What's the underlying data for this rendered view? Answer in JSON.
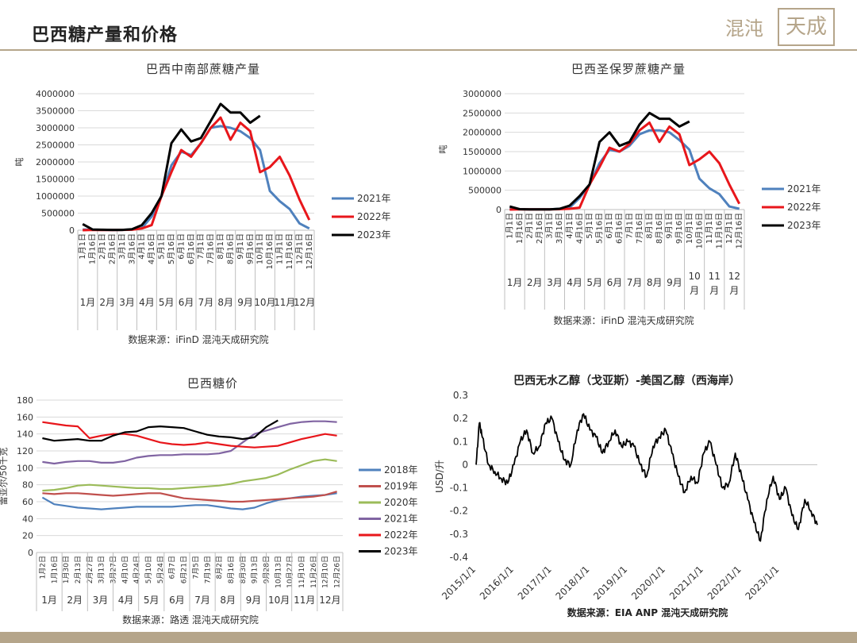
{
  "page": {
    "title": "巴西糖产量和价格",
    "logo_text": "混沌",
    "logo_box_text": "天成"
  },
  "chart_data": [
    {
      "id": "c1",
      "type": "line",
      "title": "巴西中南部蔗糖产量",
      "ylabel": "吨",
      "ylim": [
        0,
        4000000
      ],
      "yticks": [
        "0",
        "500000",
        "1000000",
        "1500000",
        "2000000",
        "2500000",
        "3000000",
        "3500000",
        "4000000"
      ],
      "x": [
        "1月1日",
        "1月16日",
        "2月1日",
        "2月16日",
        "3月1日",
        "3月16日",
        "4月1日",
        "4月16日",
        "5月1日",
        "5月16日",
        "6月1日",
        "6月16日",
        "7月1日",
        "7月16日",
        "8月1日",
        "8月16日",
        "9月1日",
        "9月16日",
        "10月1日",
        "10月16日",
        "11月1日",
        "11月16日",
        "12月1日",
        "12月16日"
      ],
      "months": [
        "1月",
        "2月",
        "3月",
        "4月",
        "5月",
        "6月",
        "7月",
        "8月",
        "9月",
        "10月",
        "11月",
        "12月"
      ],
      "series": [
        {
          "name": "2021年",
          "color": "#4f81bd",
          "values": [
            20000,
            15000,
            10000,
            8000,
            10000,
            20000,
            60000,
            400000,
            1000000,
            1900000,
            2300000,
            2200000,
            2550000,
            3000000,
            3050000,
            3000000,
            2900000,
            2700000,
            2350000,
            1150000,
            850000,
            620000,
            200000,
            50000
          ]
        },
        {
          "name": "2022年",
          "color": "#e8161b",
          "values": [
            0,
            10000,
            5000,
            5000,
            10000,
            15000,
            50000,
            150000,
            1000000,
            1700000,
            2350000,
            2150000,
            2550000,
            3000000,
            3300000,
            2650000,
            3150000,
            2900000,
            1700000,
            1850000,
            2150000,
            1600000,
            900000,
            300000
          ]
        },
        {
          "name": "2023年",
          "color": "#000000",
          "values": [
            180000,
            20000,
            15000,
            10000,
            10000,
            30000,
            150000,
            500000,
            1000000,
            2550000,
            2950000,
            2600000,
            2700000,
            3200000,
            3700000,
            3450000,
            3450000,
            3150000,
            3350000,
            null,
            null,
            null,
            null,
            null
          ]
        }
      ],
      "legend_position": "right",
      "source": "数据来源：iFinD 混沌天成研究院"
    },
    {
      "id": "c2",
      "type": "line",
      "title": "巴西圣保罗蔗糖产量",
      "ylabel": "吨",
      "ylim": [
        0,
        3000000
      ],
      "yticks": [
        "0",
        "500000",
        "1000000",
        "1500000",
        "2000000",
        "2500000",
        "3000000"
      ],
      "x": [
        "1月1日",
        "1月16日",
        "2月1日",
        "2月16日",
        "3月1日",
        "3月16日",
        "4月1日",
        "4月16日",
        "5月1日",
        "5月16日",
        "6月1日",
        "6月16日",
        "7月1日",
        "7月16日",
        "8月1日",
        "8月16日",
        "9月1日",
        "9月16日",
        "10月1日",
        "10月16日",
        "11月1日",
        "11月16日",
        "12月1日",
        "12月16日"
      ],
      "months": [
        "1月",
        "2月",
        "3月",
        "4月",
        "5月",
        "6月",
        "7月",
        "8月",
        "9月",
        "10\n月",
        "11\n月",
        "12\n月"
      ],
      "series": [
        {
          "name": "2021年",
          "color": "#4f81bd",
          "values": [
            20000,
            10000,
            5000,
            5000,
            5000,
            20000,
            50000,
            300000,
            650000,
            1200000,
            1550000,
            1500000,
            1650000,
            1950000,
            2050000,
            2050000,
            2000000,
            1800000,
            1550000,
            800000,
            550000,
            400000,
            80000,
            20000
          ]
        },
        {
          "name": "2022年",
          "color": "#e8161b",
          "values": [
            0,
            5000,
            5000,
            5000,
            5000,
            10000,
            20000,
            50000,
            650000,
            1100000,
            1600000,
            1500000,
            1700000,
            2050000,
            2250000,
            1750000,
            2150000,
            1950000,
            1150000,
            1300000,
            1500000,
            1200000,
            650000,
            150000
          ]
        },
        {
          "name": "2023年",
          "color": "#000000",
          "values": [
            80000,
            10000,
            5000,
            5000,
            5000,
            20000,
            100000,
            350000,
            650000,
            1750000,
            2000000,
            1650000,
            1750000,
            2200000,
            2500000,
            2350000,
            2350000,
            2150000,
            2280000,
            null,
            null,
            null,
            null,
            null
          ]
        }
      ],
      "legend_position": "right",
      "source": "数据来源：iFinD 混沌天成研究院"
    },
    {
      "id": "c3",
      "type": "line",
      "title": "巴西糖价",
      "ylabel": "雷亚尔/50千克",
      "ylim": [
        0,
        180
      ],
      "yticks": [
        "0",
        "20",
        "40",
        "60",
        "80",
        "100",
        "120",
        "140",
        "160",
        "180"
      ],
      "x": [
        "1月2日",
        "1月16日",
        "1月30日",
        "2月13日",
        "2月27日",
        "3月13日",
        "3月27日",
        "4月10日",
        "4月24日",
        "5月10日",
        "5月24日",
        "6月7日",
        "6月21日",
        "7月5日",
        "7月19日",
        "8月2日",
        "8月16日",
        "8月30日",
        "9月13日",
        "9月28日",
        "10月13日",
        "10月27日",
        "11月10日",
        "11月26日",
        "12月10日",
        "12月26日"
      ],
      "months": [
        "1月",
        "2月",
        "3月",
        "4月",
        "5月",
        "6月",
        "7月",
        "8月",
        "9月",
        "10月",
        "11月",
        "12月"
      ],
      "series": [
        {
          "name": "2018年",
          "color": "#4f81bd",
          "values": [
            65,
            57,
            55,
            53,
            52,
            51,
            52,
            53,
            54,
            54,
            54,
            54,
            55,
            56,
            56,
            54,
            52,
            51,
            53,
            58,
            62,
            64,
            66,
            67,
            68,
            70
          ]
        },
        {
          "name": "2019年",
          "color": "#c0504d",
          "values": [
            70,
            69,
            70,
            70,
            69,
            68,
            67,
            68,
            69,
            70,
            70,
            67,
            64,
            63,
            62,
            61,
            60,
            60,
            61,
            62,
            63,
            64,
            65,
            66,
            68,
            72
          ]
        },
        {
          "name": "2020年",
          "color": "#9bbb59",
          "values": [
            73,
            74,
            76,
            79,
            80,
            79,
            78,
            77,
            76,
            76,
            75,
            75,
            76,
            77,
            78,
            79,
            81,
            84,
            86,
            88,
            92,
            98,
            103,
            108,
            110,
            108
          ]
        },
        {
          "name": "2021年",
          "color": "#8064a2",
          "values": [
            107,
            105,
            107,
            108,
            108,
            106,
            106,
            108,
            112,
            114,
            115,
            115,
            116,
            116,
            116,
            117,
            120,
            130,
            140,
            144,
            148,
            152,
            154,
            155,
            155,
            154
          ]
        },
        {
          "name": "2022年",
          "color": "#e8161b",
          "values": [
            154,
            152,
            150,
            149,
            135,
            138,
            140,
            140,
            138,
            134,
            130,
            128,
            127,
            128,
            130,
            128,
            126,
            125,
            124,
            125,
            126,
            130,
            134,
            137,
            140,
            138
          ]
        },
        {
          "name": "2023年",
          "color": "#000000",
          "values": [
            135,
            132,
            133,
            134,
            132,
            132,
            138,
            142,
            143,
            148,
            149,
            148,
            147,
            143,
            139,
            137,
            136,
            134,
            136,
            148,
            156,
            null,
            null,
            null,
            null,
            null
          ]
        }
      ],
      "legend_position": "right",
      "source": "数据来源：路透 混沌天成研究院"
    },
    {
      "id": "c4",
      "type": "line",
      "title": "巴西无水乙醇（戈亚斯）-美国乙醇（西海岸）",
      "ylabel": "USD/升",
      "ylim": [
        -0.4,
        0.3
      ],
      "yticks": [
        "-0.4",
        "-0.3",
        "-0.2",
        "-0.1",
        "0",
        "0.1",
        "0.2",
        "0.3"
      ],
      "xticks": [
        "2015/1/1",
        "2016/1/1",
        "2017/1/1",
        "2018/1/1",
        "2019/1/1",
        "2020/1/1",
        "2021/1/1",
        "2022/1/1",
        "2023/1/1"
      ],
      "x_range": [
        "2015/1/1",
        "2023/12/31"
      ],
      "series": [
        {
          "name": "",
          "color": "#000000",
          "x": [
            "2015/1/1",
            "2015/2/1",
            "2015/3/1",
            "2015/5/1",
            "2015/7/1",
            "2015/9/1",
            "2015/11/1",
            "2016/1/1",
            "2016/3/1",
            "2016/5/1",
            "2016/7/1",
            "2016/9/1",
            "2016/11/1",
            "2017/1/1",
            "2017/3/1",
            "2017/5/1",
            "2017/7/1",
            "2017/9/1",
            "2017/11/1",
            "2018/1/1",
            "2018/3/1",
            "2018/5/1",
            "2018/7/1",
            "2018/9/1",
            "2018/11/1",
            "2019/1/1",
            "2019/3/1",
            "2019/5/1",
            "2019/7/1",
            "2019/9/1",
            "2019/11/1",
            "2020/1/1",
            "2020/3/1",
            "2020/5/1",
            "2020/7/1",
            "2020/9/1",
            "2020/11/1",
            "2021/1/1",
            "2021/3/1",
            "2021/5/1",
            "2021/7/1",
            "2021/9/1",
            "2021/11/1",
            "2022/1/1",
            "2022/3/1",
            "2022/5/1",
            "2022/7/1",
            "2022/9/1",
            "2022/11/1",
            "2023/1/1",
            "2023/3/1",
            "2023/5/1",
            "2023/7/1",
            "2023/9/1",
            "2023/11/1",
            "2023/12/31"
          ],
          "values": [
            0.0,
            0.18,
            0.12,
            0.0,
            -0.03,
            -0.06,
            -0.08,
            0.0,
            0.1,
            0.15,
            0.05,
            0.08,
            0.18,
            0.2,
            0.1,
            0.02,
            0.0,
            0.15,
            0.22,
            0.15,
            0.12,
            0.05,
            0.1,
            0.15,
            0.08,
            0.1,
            0.08,
            0.0,
            -0.05,
            0.08,
            0.12,
            0.15,
            0.05,
            -0.05,
            -0.12,
            -0.05,
            -0.08,
            0.05,
            0.1,
            0.0,
            -0.1,
            -0.08,
            0.05,
            -0.05,
            -0.15,
            -0.25,
            -0.33,
            -0.15,
            -0.05,
            -0.15,
            -0.1,
            -0.22,
            -0.28,
            -0.15,
            -0.2,
            -0.26
          ]
        }
      ],
      "source": "数据来源：EIA ANP 混沌天成研究院"
    }
  ]
}
